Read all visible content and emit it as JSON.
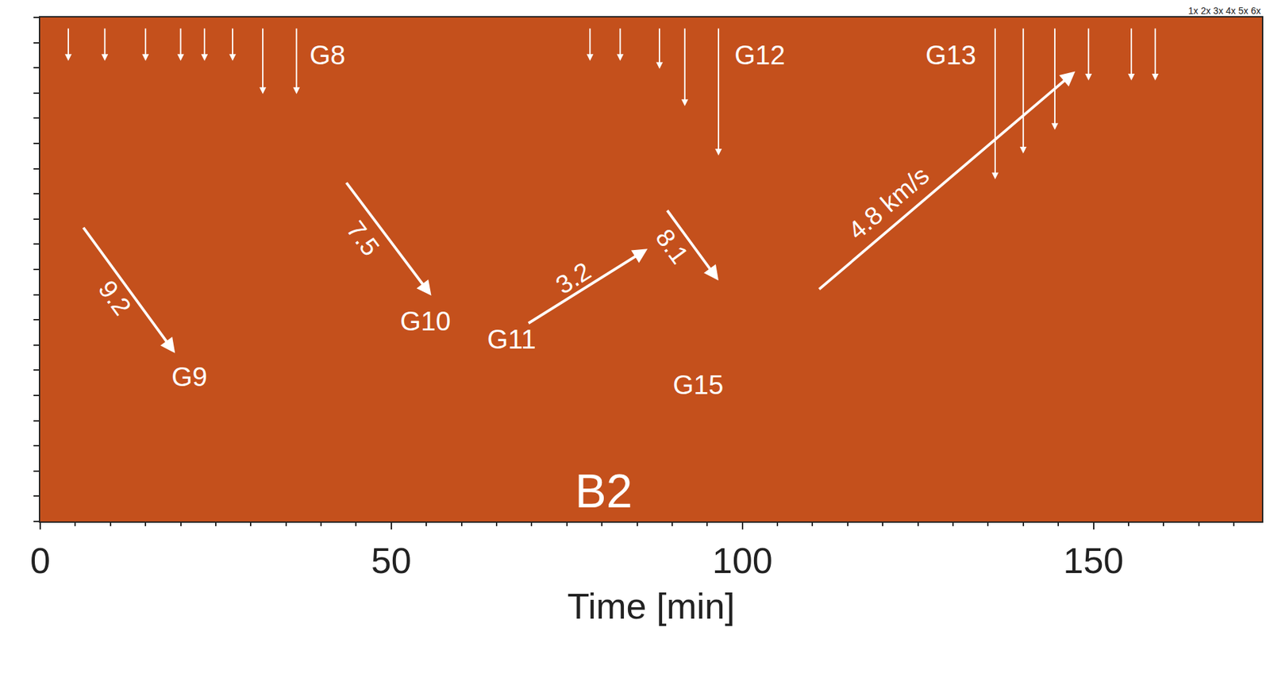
{
  "chart_data": {
    "type": "time_distance",
    "x_label": "Time [min]",
    "xlim": [
      0,
      174
    ],
    "xticks": [
      0,
      50,
      100,
      150
    ],
    "ylim": [
      0,
      100
    ],
    "tick_labels": "x",
    "color": "#c4501c",
    "scale_label": "1x 2x 3x 4x 5x 6x",
    "speed_arrows": [
      {
        "text": "9.2",
        "x0": 6.05,
        "y0": 58.5,
        "x1": 19.2,
        "y1": 33.4,
        "label_x": 10.6,
        "label_y": 44.4
      },
      {
        "text": "7.5",
        "x0": 43.5,
        "y0": 67.4,
        "x1": 55.7,
        "y1": 44.8,
        "label_x": 46.0,
        "label_y": 56.1
      },
      {
        "text": "3.2",
        "x0": 69.4,
        "y0": 39.2,
        "x1": 86.5,
        "y1": 54.1,
        "label_x": 75.9,
        "label_y": 48.3
      },
      {
        "text": "8.1",
        "x0": 89.2,
        "y0": 61.9,
        "x1": 96.6,
        "y1": 47.8,
        "label_x": 90.0,
        "label_y": 54.5
      },
      {
        "text": "4.8 km/s",
        "x0": 110.8,
        "y0": 45.9,
        "x1": 147.4,
        "y1": 89.3,
        "label_x": 120.8,
        "label_y": 63.2
      }
    ],
    "labels": [
      {
        "text": "G8",
        "x": 40.9,
        "y": 92.6
      },
      {
        "text": "G12",
        "x": 102.5,
        "y": 92.6
      },
      {
        "text": "G13",
        "x": 129.7,
        "y": 92.6
      },
      {
        "text": "G9",
        "x": 21.2,
        "y": 28.7
      },
      {
        "text": "G10",
        "x": 54.9,
        "y": 39.7
      },
      {
        "text": "G11",
        "x": 67.1,
        "y": 36.2
      },
      {
        "text": "G15",
        "x": 93.7,
        "y": 27.1
      },
      {
        "text": "B2",
        "x": 80.3,
        "y": 6.0
      }
    ],
    "event_arrows": [
      {
        "x": 4.0,
        "y": 91.4
      },
      {
        "x": 9.2,
        "y": 91.4
      },
      {
        "x": 15.0,
        "y": 91.4
      },
      {
        "x": 20.0,
        "y": 91.4
      },
      {
        "x": 23.4,
        "y": 91.4
      },
      {
        "x": 27.4,
        "y": 91.4
      },
      {
        "x": 31.7,
        "y": 84.8
      },
      {
        "x": 36.5,
        "y": 84.8
      },
      {
        "x": 78.3,
        "y": 91.4
      },
      {
        "x": 82.6,
        "y": 91.4
      },
      {
        "x": 88.2,
        "y": 89.8
      },
      {
        "x": 91.8,
        "y": 82.4
      },
      {
        "x": 96.6,
        "y": 72.6
      },
      {
        "x": 136.0,
        "y": 67.9
      },
      {
        "x": 140.0,
        "y": 73.0
      },
      {
        "x": 144.5,
        "y": 77.7
      },
      {
        "x": 149.3,
        "y": 87.5
      },
      {
        "x": 155.4,
        "y": 87.5
      },
      {
        "x": 158.8,
        "y": 87.5
      }
    ]
  }
}
